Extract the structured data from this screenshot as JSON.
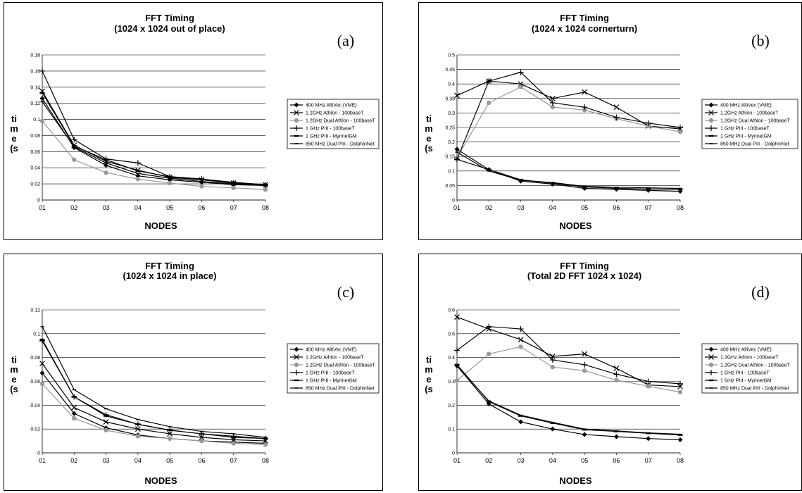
{
  "legend": [
    {
      "name": "400 MHz AltiVec (VME)",
      "marker": "diamond",
      "color": "#000000"
    },
    {
      "name": "1.2GHz Athlon - 100baseT",
      "marker": "x",
      "color": "#000000"
    },
    {
      "name": "1.2GHz Dual Athlon - 100baseT",
      "marker": "circle",
      "color": "#999999"
    },
    {
      "name": "1 GHz PIII - 100baseT",
      "marker": "plus",
      "color": "#000000"
    },
    {
      "name": "1 GHz PIII - MyrinetGM",
      "marker": "dash",
      "color": "#000000"
    },
    {
      "name": "850 MHz Dual PIII - DolphinNet",
      "marker": "minus",
      "color": "#000000"
    }
  ],
  "chart_data": [
    {
      "type": "line",
      "panel_label": "(a)",
      "title": "FFT Timing",
      "subtitle": "(1024 x 1024 out of place)",
      "xlabel": "NODES",
      "ylabel": "time (s",
      "categories": [
        "01",
        "02",
        "03",
        "04",
        "05",
        "06",
        "07",
        "08"
      ],
      "ylim": [
        0,
        0.18
      ],
      "yticks": [
        0,
        0.02,
        0.04,
        0.06,
        0.08,
        0.1,
        0.12,
        0.14,
        0.16,
        0.18
      ],
      "ytick_labels": [
        "0",
        "0.02",
        "0.04",
        "0.06",
        "0.08",
        "0.1",
        "0.12",
        "0.14",
        "0.16",
        "0.18"
      ],
      "grid": true,
      "legend_position": "right",
      "series": [
        {
          "name": "400 MHz AltiVec (VME)",
          "values": [
            0.126,
            0.065,
            0.043,
            0.03,
            0.025,
            0.022,
            0.019,
            0.018
          ]
        },
        {
          "name": "1.2GHz Athlon - 100baseT",
          "values": [
            0.135,
            0.068,
            0.048,
            0.037,
            0.028,
            0.025,
            0.021,
            0.019
          ]
        },
        {
          "name": "1.2GHz Dual Athlon - 100baseT",
          "values": [
            0.098,
            0.05,
            0.034,
            0.026,
            0.021,
            0.017,
            0.015,
            0.013
          ]
        },
        {
          "name": "1 GHz PIII - 100baseT",
          "values": [
            0.16,
            0.075,
            0.051,
            0.046,
            0.029,
            0.026,
            0.021,
            0.019
          ]
        },
        {
          "name": "1 GHz PIII - MyrinetGM",
          "values": [
            0.133,
            0.067,
            0.05,
            0.036,
            0.029,
            0.026,
            0.022,
            0.019
          ]
        },
        {
          "name": "850 MHz Dual PIII - DolphinNet",
          "values": [
            0.122,
            0.066,
            0.046,
            0.033,
            0.027,
            0.023,
            0.02,
            0.018
          ]
        }
      ]
    },
    {
      "type": "line",
      "panel_label": "(b)",
      "title": "FFT Timing",
      "subtitle": "(1024 x 1024 cornerturn)",
      "xlabel": "NODES",
      "ylabel": "time (s",
      "categories": [
        "01",
        "02",
        "03",
        "04",
        "05",
        "06",
        "07",
        "08"
      ],
      "ylim": [
        0,
        0.5
      ],
      "yticks": [
        0,
        0.05,
        0.1,
        0.15,
        0.2,
        0.25,
        0.3,
        0.35,
        0.4,
        0.45,
        0.5
      ],
      "ytick_labels": [
        "0",
        "0.05",
        "0.1",
        "0.15",
        "0.2",
        "0.25",
        "0.3",
        "0.35",
        "0.4",
        "0.45",
        "0.5"
      ],
      "grid": true,
      "legend_position": "right",
      "series": [
        {
          "name": "400 MHz AltiVec (VME)",
          "values": [
            0.175,
            0.105,
            0.065,
            0.055,
            0.04,
            0.037,
            0.033,
            0.03
          ]
        },
        {
          "name": "1.2GHz Athlon - 100baseT",
          "values": [
            0.36,
            0.41,
            0.4,
            0.35,
            0.372,
            0.32,
            0.255,
            0.245
          ]
        },
        {
          "name": "1.2GHz Dual Athlon - 100baseT",
          "values": [
            0.145,
            0.335,
            0.39,
            0.32,
            0.31,
            0.28,
            0.255,
            0.235
          ]
        },
        {
          "name": "1 GHz PIII - 100baseT",
          "values": [
            0.14,
            0.41,
            0.44,
            0.335,
            0.32,
            0.285,
            0.265,
            0.25
          ]
        },
        {
          "name": "1 GHz PIII - MyrinetGM",
          "values": [
            0.14,
            0.105,
            0.07,
            0.058,
            0.045,
            0.04,
            0.038,
            0.037
          ]
        },
        {
          "name": "850 MHz Dual PIII - DolphinNet",
          "values": [
            0.165,
            0.1,
            0.068,
            0.06,
            0.047,
            0.044,
            0.042,
            0.04
          ]
        }
      ]
    },
    {
      "type": "line",
      "panel_label": "(c)",
      "title": "FFT Timing",
      "subtitle": "(1024 x 1024 in place)",
      "xlabel": "NODES",
      "ylabel": "time (s",
      "categories": [
        "01",
        "02",
        "03",
        "04",
        "05",
        "06",
        "07",
        "08"
      ],
      "ylim": [
        0,
        0.12
      ],
      "yticks": [
        0,
        0.02,
        0.04,
        0.06,
        0.08,
        0.1,
        0.12
      ],
      "ytick_labels": [
        "0",
        "0.02",
        "0.04",
        "0.06",
        "0.08",
        "0.1",
        "0.12"
      ],
      "grid": true,
      "legend_position": "right",
      "series": [
        {
          "name": "400 MHz AltiVec (VME)",
          "values": [
            0.067,
            0.033,
            0.021,
            0.015,
            0.012,
            0.01,
            0.009,
            0.008
          ]
        },
        {
          "name": "1.2GHz Athlon - 100baseT",
          "values": [
            0.075,
            0.038,
            0.026,
            0.02,
            0.016,
            0.013,
            0.011,
            0.01
          ]
        },
        {
          "name": "1.2GHz Dual Athlon - 100baseT",
          "values": [
            0.058,
            0.029,
            0.019,
            0.014,
            0.012,
            0.01,
            0.008,
            0.007
          ]
        },
        {
          "name": "1 GHz PIII - 100baseT",
          "values": [
            0.094,
            0.047,
            0.032,
            0.024,
            0.019,
            0.016,
            0.014,
            0.012
          ]
        },
        {
          "name": "1 GHz PIII - MyrinetGM",
          "values": [
            0.095,
            0.047,
            0.031,
            0.024,
            0.019,
            0.016,
            0.013,
            0.012
          ]
        },
        {
          "name": "850 MHz Dual PIII - DolphinNet",
          "values": [
            0.106,
            0.053,
            0.037,
            0.028,
            0.022,
            0.018,
            0.016,
            0.013
          ]
        }
      ]
    },
    {
      "type": "line",
      "panel_label": "(d)",
      "title": "FFT Timing",
      "subtitle": "(Total 2D FFT 1024 x 1024)",
      "xlabel": "NODES",
      "ylabel": "time (s",
      "categories": [
        "01",
        "02",
        "03",
        "04",
        "05",
        "06",
        "07",
        "08"
      ],
      "ylim": [
        0,
        0.6
      ],
      "yticks": [
        0,
        0.1,
        0.2,
        0.3,
        0.4,
        0.5,
        0.6
      ],
      "ytick_labels": [
        "0",
        "0.1",
        "0.2",
        "0.3",
        "0.4",
        "0.5",
        "0.6"
      ],
      "grid": true,
      "legend_position": "right",
      "series": [
        {
          "name": "400 MHz AltiVec (VME)",
          "values": [
            0.365,
            0.205,
            0.13,
            0.1,
            0.077,
            0.068,
            0.06,
            0.055
          ]
        },
        {
          "name": "1.2GHz Athlon - 100baseT",
          "values": [
            0.57,
            0.52,
            0.475,
            0.405,
            0.415,
            0.355,
            0.285,
            0.278
          ]
        },
        {
          "name": "1.2GHz Dual Athlon - 100baseT",
          "values": [
            0.303,
            0.415,
            0.445,
            0.36,
            0.345,
            0.305,
            0.28,
            0.255
          ]
        },
        {
          "name": "1 GHz PIII - 100baseT",
          "values": [
            0.43,
            0.53,
            0.52,
            0.39,
            0.37,
            0.33,
            0.3,
            0.29
          ]
        },
        {
          "name": "1 GHz PIII - MyrinetGM",
          "values": [
            0.37,
            0.215,
            0.155,
            0.125,
            0.097,
            0.09,
            0.082,
            0.075
          ]
        },
        {
          "name": "850 MHz Dual PIII - DolphinNet",
          "values": [
            0.365,
            0.218,
            0.158,
            0.128,
            0.1,
            0.092,
            0.084,
            0.078
          ]
        }
      ]
    }
  ]
}
